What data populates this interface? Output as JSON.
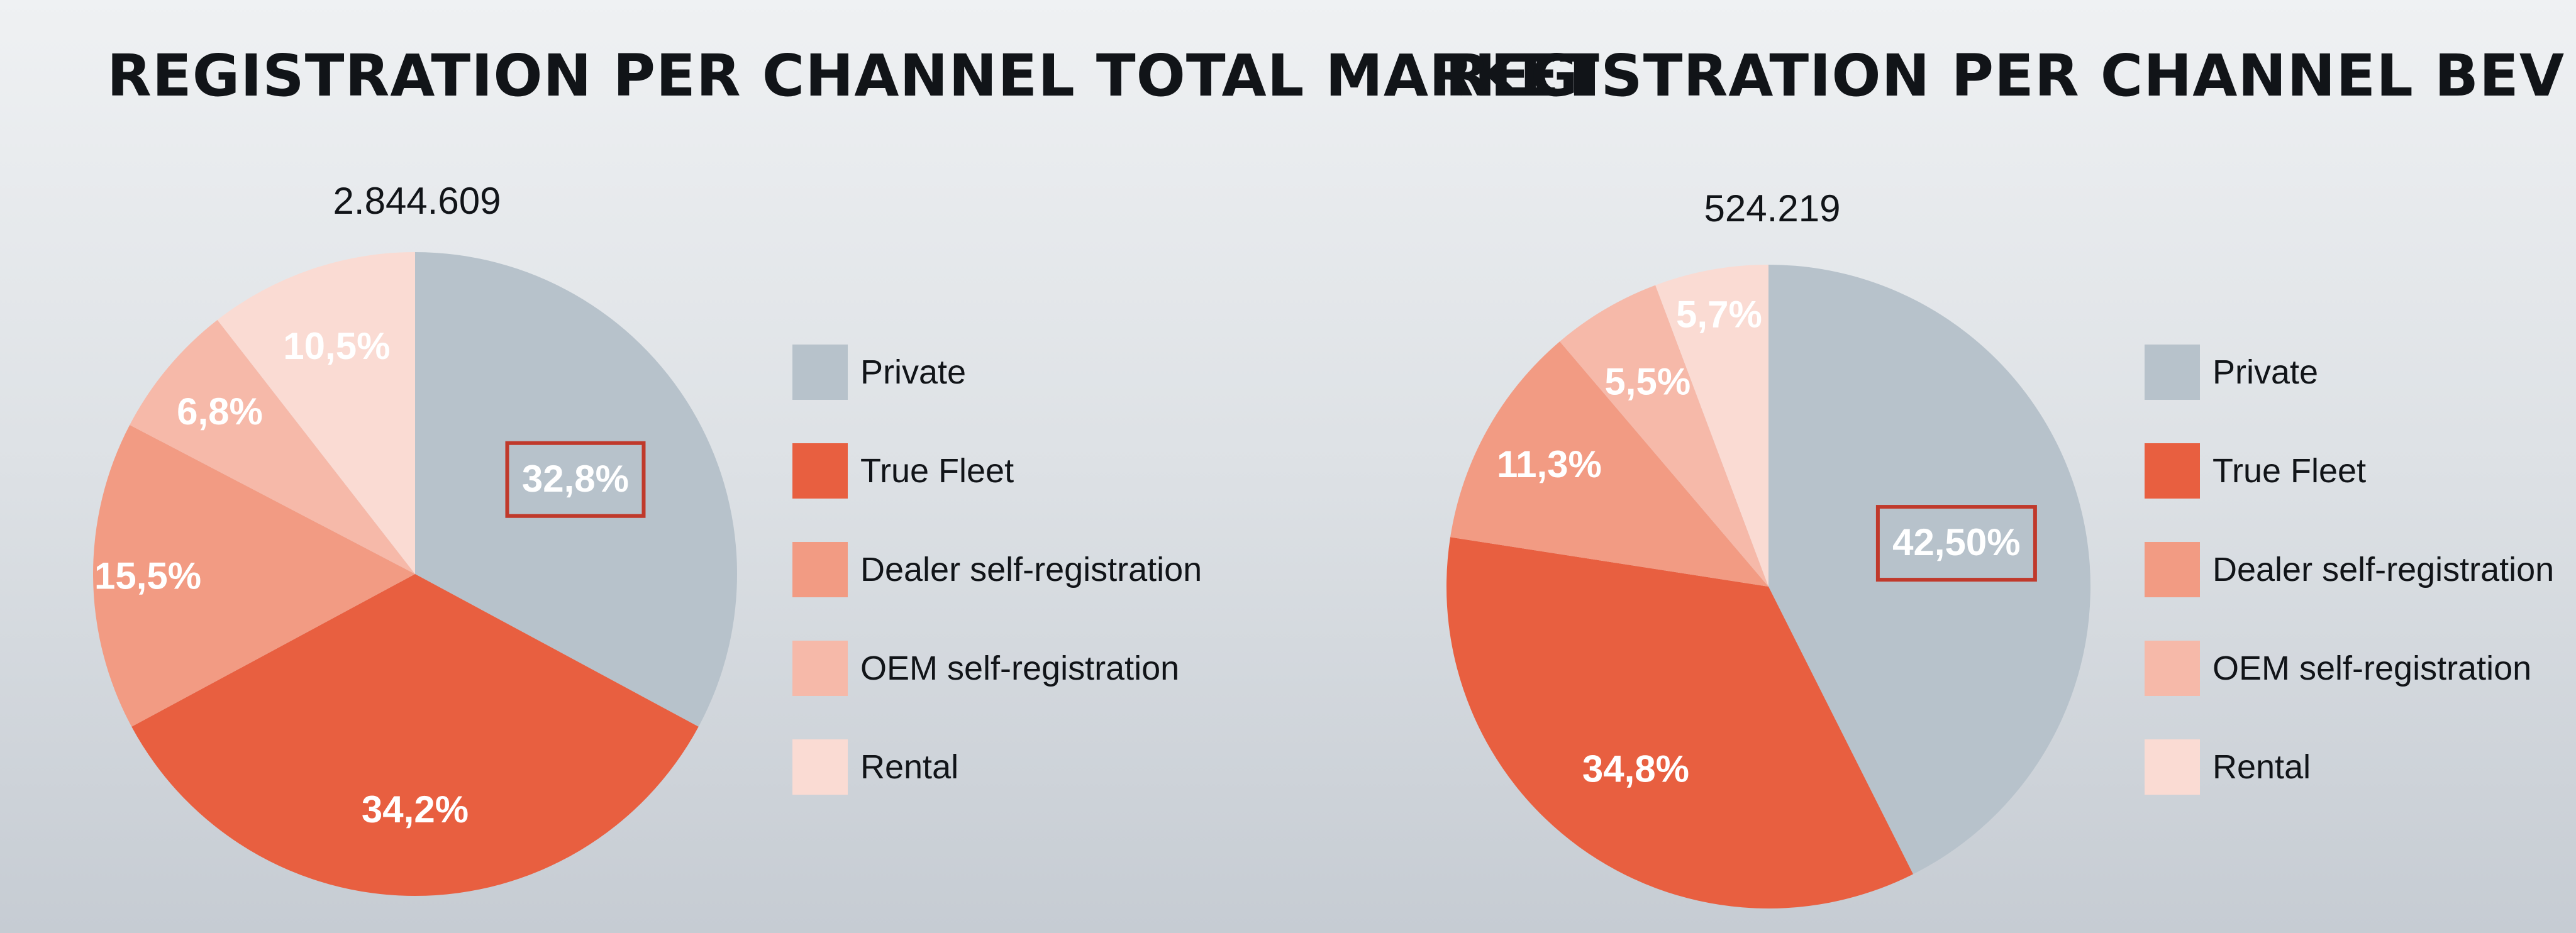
{
  "colors": {
    "private": "#b7c2cb",
    "true_fleet": "#e85f40",
    "dealer_self_registration": "#f29b83",
    "oem_self_registration": "#f6b9a9",
    "rental": "#fadbd3",
    "highlight_box": "#c0392b"
  },
  "chart_data": [
    {
      "type": "pie",
      "title": "REGISTRATION PER CHANNEL TOTAL MARKET",
      "total_label": "2.844.609",
      "categories": [
        "Private",
        "True Fleet",
        "Dealer self-registration",
        "OEM self-registration",
        "Rental"
      ],
      "values": [
        32.8,
        34.2,
        15.5,
        6.8,
        10.5
      ],
      "labels": [
        "32,8%",
        "34,2%",
        "15,5%",
        "6,8%",
        "10,5%"
      ],
      "highlighted_slice": "Private",
      "legend_position": "right",
      "start_angle": "12 o'clock, clockwise"
    },
    {
      "type": "pie",
      "title": "REGISTRATION PER CHANNEL BEV ONLY",
      "total_label": "524.219",
      "categories": [
        "Private",
        "True Fleet",
        "Dealer self-registration",
        "OEM self-registration",
        "Rental"
      ],
      "values": [
        42.5,
        34.8,
        11.3,
        5.5,
        5.7
      ],
      "labels": [
        "42,50%",
        "34,8%",
        "11,3%",
        "5,5%",
        "5,7%"
      ],
      "highlighted_slice": "Private",
      "legend_position": "right",
      "start_angle": "12 o'clock, clockwise"
    }
  ]
}
